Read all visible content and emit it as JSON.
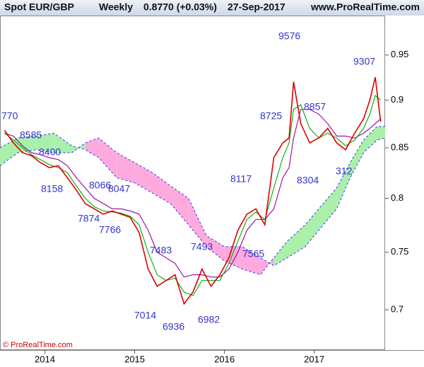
{
  "header": {
    "title": "Spot EUR/GBP",
    "period": "Weekly",
    "price": "0.8770 (+0.03%)",
    "date": "27-Sep-2017",
    "site": "www.ProRealTime.com"
  },
  "footer": "© ProRealTime.com",
  "chart_data": {
    "type": "line",
    "log_scale": true,
    "xlim": [
      2013.5,
      2017.79
    ],
    "xticks": [
      2014,
      2015,
      2016,
      2017
    ],
    "ylim": [
      0.667,
      0.996
    ],
    "yticks": [
      0.7,
      0.75,
      0.8,
      0.85,
      0.9,
      0.95
    ],
    "series": [
      {
        "color": "#dd0000",
        "x": [
          2013.55,
          2013.65,
          2013.75,
          2013.85,
          2013.95,
          2014.05,
          2014.15,
          2014.25,
          2014.35,
          2014.45,
          2014.55,
          2014.65,
          2014.75,
          2014.85,
          2014.95,
          2015.05,
          2015.15,
          2015.25,
          2015.35,
          2015.45,
          2015.55,
          2015.65,
          2015.75,
          2015.85,
          2015.95,
          2016.05,
          2016.15,
          2016.25,
          2016.35,
          2016.45,
          2016.55,
          2016.65,
          2016.72,
          2016.77,
          2016.85,
          2016.95,
          2017.05,
          2017.15,
          2017.25,
          2017.35,
          2017.45,
          2017.55,
          2017.62,
          2017.68,
          2017.74
        ],
        "values": [
          0.868,
          0.855,
          0.845,
          0.842,
          0.835,
          0.83,
          0.832,
          0.82,
          0.808,
          0.795,
          0.79,
          0.785,
          0.788,
          0.785,
          0.782,
          0.768,
          0.735,
          0.72,
          0.725,
          0.73,
          0.705,
          0.715,
          0.735,
          0.72,
          0.73,
          0.745,
          0.77,
          0.785,
          0.79,
          0.775,
          0.84,
          0.855,
          0.86,
          0.92,
          0.875,
          0.855,
          0.86,
          0.87,
          0.855,
          0.848,
          0.865,
          0.88,
          0.9,
          0.925,
          0.877
        ]
      },
      {
        "color": "#00aa00",
        "x": [
          2013.55,
          2013.65,
          2013.75,
          2013.85,
          2013.95,
          2014.05,
          2014.15,
          2014.25,
          2014.35,
          2014.45,
          2014.55,
          2014.65,
          2014.75,
          2014.85,
          2014.95,
          2015.05,
          2015.15,
          2015.25,
          2015.35,
          2015.45,
          2015.55,
          2015.65,
          2015.75,
          2015.85,
          2015.95,
          2016.05,
          2016.15,
          2016.25,
          2016.35,
          2016.45,
          2016.55,
          2016.65,
          2016.72,
          2016.77,
          2016.85,
          2016.95,
          2017.05,
          2017.15,
          2017.25,
          2017.35,
          2017.45,
          2017.55,
          2017.62,
          2017.68,
          2017.74
        ],
        "values": [
          0.865,
          0.858,
          0.85,
          0.843,
          0.838,
          0.833,
          0.83,
          0.825,
          0.812,
          0.8,
          0.792,
          0.788,
          0.787,
          0.786,
          0.783,
          0.775,
          0.75,
          0.73,
          0.725,
          0.727,
          0.715,
          0.712,
          0.725,
          0.725,
          0.725,
          0.74,
          0.76,
          0.78,
          0.787,
          0.78,
          0.81,
          0.84,
          0.855,
          0.89,
          0.895,
          0.87,
          0.86,
          0.865,
          0.86,
          0.852,
          0.858,
          0.87,
          0.885,
          0.905,
          0.9
        ]
      },
      {
        "color": "#990099",
        "x": [
          2013.55,
          2013.65,
          2013.75,
          2013.85,
          2013.95,
          2014.05,
          2014.15,
          2014.25,
          2014.35,
          2014.45,
          2014.55,
          2014.65,
          2014.75,
          2014.85,
          2014.95,
          2015.05,
          2015.15,
          2015.25,
          2015.35,
          2015.45,
          2015.55,
          2015.65,
          2015.75,
          2015.85,
          2015.95,
          2016.05,
          2016.15,
          2016.25,
          2016.35,
          2016.45,
          2016.55,
          2016.65,
          2016.72,
          2016.77,
          2016.85,
          2016.95,
          2017.05,
          2017.15,
          2017.25,
          2017.35,
          2017.45,
          2017.55,
          2017.62,
          2017.68,
          2017.74
        ],
        "values": [
          0.865,
          0.862,
          0.852,
          0.845,
          0.843,
          0.84,
          0.838,
          0.832,
          0.82,
          0.81,
          0.8,
          0.795,
          0.79,
          0.79,
          0.788,
          0.785,
          0.77,
          0.75,
          0.745,
          0.74,
          0.728,
          0.73,
          0.73,
          0.728,
          0.728,
          0.735,
          0.75,
          0.77,
          0.78,
          0.78,
          0.79,
          0.82,
          0.83,
          0.86,
          0.89,
          0.89,
          0.885,
          0.875,
          0.862,
          0.862,
          0.86,
          0.865,
          0.87,
          0.875,
          0.88
        ]
      }
    ],
    "cloud": {
      "up_color": "#aaf0aa",
      "down_color": "#ffaadd",
      "line_color": "#3333ff",
      "x": [
        2013.5,
        2013.7,
        2013.9,
        2014.1,
        2014.3,
        2014.45,
        2014.6,
        2014.8,
        2015.0,
        2015.2,
        2015.4,
        2015.6,
        2015.8,
        2016.0,
        2016.2,
        2016.4,
        2016.55,
        2016.7,
        2016.9,
        2017.1,
        2017.25,
        2017.4,
        2017.55,
        2017.7,
        2017.79
      ],
      "span_a": [
        0.85,
        0.86,
        0.862,
        0.865,
        0.852,
        0.848,
        0.84,
        0.82,
        0.815,
        0.805,
        0.795,
        0.775,
        0.755,
        0.742,
        0.735,
        0.73,
        0.745,
        0.76,
        0.775,
        0.795,
        0.81,
        0.835,
        0.858,
        0.872,
        0.872
      ],
      "span_b": [
        0.832,
        0.845,
        0.848,
        0.845,
        0.845,
        0.855,
        0.86,
        0.845,
        0.835,
        0.825,
        0.812,
        0.8,
        0.765,
        0.755,
        0.755,
        0.745,
        0.738,
        0.745,
        0.755,
        0.775,
        0.79,
        0.82,
        0.845,
        0.858,
        0.86
      ]
    },
    "annotations": [
      "770",
      "8585",
      "8400",
      "8158",
      "8066",
      "8047",
      "7874",
      "7766",
      "7483",
      "7014",
      "6936",
      "7493",
      "6982",
      "7565",
      "8117",
      "9576",
      "8725",
      "8857",
      "8304",
      "312",
      "9307"
    ]
  }
}
